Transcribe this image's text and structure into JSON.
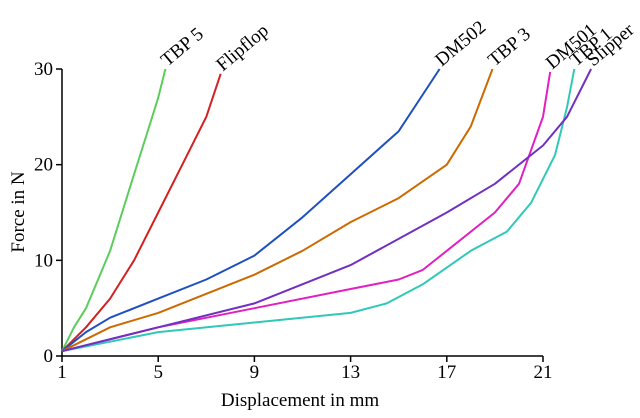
{
  "chart_data": {
    "type": "line",
    "xlabel": "Displacement in mm",
    "ylabel": "Force in N",
    "xlim": [
      1,
      21
    ],
    "xticks": [
      1,
      5,
      9,
      13,
      17,
      21
    ],
    "ylim": [
      0,
      30
    ],
    "yticks": [
      0,
      10,
      20,
      30
    ],
    "legend": "line-end",
    "series": [
      {
        "name": "TBP 5",
        "color": "#5ccc5c",
        "x": [
          1,
          1.5,
          2,
          2.5,
          3,
          3.5,
          4,
          4.5,
          5,
          5.3
        ],
        "values": [
          0.5,
          3,
          5,
          8,
          11,
          15,
          19,
          23,
          27,
          30
        ]
      },
      {
        "name": "Flipflop",
        "color": "#d42020",
        "x": [
          1,
          2,
          3,
          4,
          5,
          6,
          7,
          7.6
        ],
        "values": [
          0.5,
          3,
          6,
          10,
          15,
          20,
          25,
          29.5
        ]
      },
      {
        "name": "DM502",
        "color": "#2050c0",
        "x": [
          1,
          2,
          3,
          5,
          7,
          9,
          11,
          13,
          15,
          16.7
        ],
        "values": [
          0.5,
          2.5,
          4,
          6,
          8,
          10.5,
          14.5,
          19,
          23.5,
          30
        ]
      },
      {
        "name": "TBP 3",
        "color": "#cc6a00",
        "x": [
          1,
          3,
          5,
          7,
          9,
          11,
          13,
          15,
          17,
          18,
          18.9
        ],
        "values": [
          0.5,
          3,
          4.5,
          6.5,
          8.5,
          11,
          14,
          16.5,
          20,
          24,
          30
        ]
      },
      {
        "name": "DM501",
        "color": "#e020c0",
        "x": [
          1,
          5,
          9,
          13,
          15,
          16,
          17,
          19,
          20,
          21,
          21.3
        ],
        "values": [
          0.5,
          3,
          5,
          7,
          8,
          9,
          11,
          15,
          18,
          25,
          29.7
        ]
      },
      {
        "name": "TBP 1",
        "color": "#30c8b8",
        "x": [
          1,
          5,
          9,
          13,
          14.5,
          16,
          18,
          19.5,
          20.5,
          21.5,
          22,
          22.3
        ],
        "values": [
          0.5,
          2.5,
          3.5,
          4.5,
          5.5,
          7.5,
          11,
          13,
          16,
          21,
          26,
          30
        ]
      },
      {
        "name": "Slipper",
        "color": "#7030c0",
        "x": [
          1,
          5,
          9,
          13,
          17,
          19,
          21,
          22,
          23
        ],
        "values": [
          0.5,
          3,
          5.5,
          9.5,
          15,
          18,
          22,
          25,
          30
        ]
      }
    ]
  }
}
